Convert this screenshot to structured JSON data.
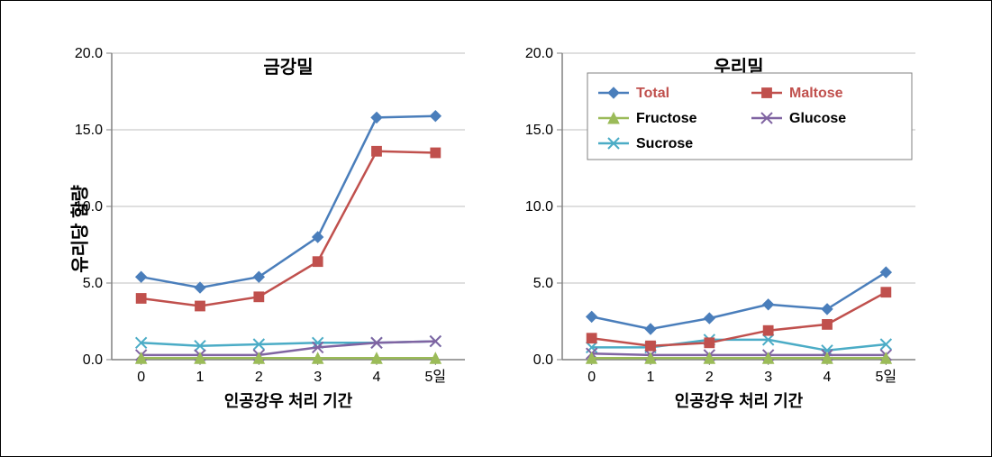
{
  "figure": {
    "background_color": "#ffffff",
    "axis_color": "#808080",
    "grid_color": "#bfbfbf",
    "ylabel": "유리당 함량",
    "xlabel": "인공강우 처리 기간",
    "ylim": [
      0,
      20
    ],
    "ytick_step": 5,
    "ytick_labels": [
      "0.0",
      "5.0",
      "10.0",
      "15.0",
      "20.0"
    ],
    "x_categories": [
      "0",
      "1",
      "2",
      "3",
      "4",
      "5일"
    ],
    "title_fontsize": 20,
    "label_fontsize": 18,
    "tick_fontsize": 16,
    "line_width": 2.5,
    "marker_size": 6
  },
  "series_meta": {
    "Total": {
      "color": "#4a7ebb",
      "marker": "diamond",
      "label": "Total",
      "label_color": "#c0504d"
    },
    "Maltose": {
      "color": "#c0504d",
      "marker": "square",
      "label": "Maltose",
      "label_color": "#c0504d"
    },
    "Fructose": {
      "color": "#9bbb59",
      "marker": "triangle",
      "label": "Fructose",
      "label_color": "#000000"
    },
    "Glucose": {
      "color": "#8064a2",
      "marker": "x",
      "label": "Glucose",
      "label_color": "#000000"
    },
    "Sucrose": {
      "color": "#4bacc6",
      "marker": "x",
      "label": "Sucrose",
      "label_color": "#000000"
    }
  },
  "legend": {
    "items": [
      "Total",
      "Maltose",
      "Fructose",
      "Glucose",
      "Sucrose"
    ],
    "border_color": "#808080",
    "panel_index": 1
  },
  "panels": [
    {
      "title": "금강밀",
      "series": {
        "Total": [
          5.4,
          4.7,
          5.4,
          8.0,
          15.8,
          15.9
        ],
        "Maltose": [
          4.0,
          3.5,
          4.1,
          6.4,
          13.6,
          13.5
        ],
        "Fructose": [
          0.1,
          0.1,
          0.1,
          0.1,
          0.1,
          0.1
        ],
        "Glucose": [
          0.3,
          0.3,
          0.3,
          0.8,
          1.1,
          1.2
        ],
        "Sucrose": [
          1.1,
          0.9,
          1.0,
          1.1,
          1.1,
          1.2
        ]
      }
    },
    {
      "title": "우리밀",
      "series": {
        "Total": [
          2.8,
          2.0,
          2.7,
          3.6,
          3.3,
          5.7
        ],
        "Maltose": [
          1.4,
          0.9,
          1.1,
          1.9,
          2.3,
          4.4
        ],
        "Fructose": [
          0.1,
          0.1,
          0.1,
          0.1,
          0.1,
          0.1
        ],
        "Glucose": [
          0.4,
          0.3,
          0.3,
          0.3,
          0.3,
          0.3
        ],
        "Sucrose": [
          0.8,
          0.8,
          1.3,
          1.3,
          0.6,
          1.0
        ]
      }
    }
  ]
}
